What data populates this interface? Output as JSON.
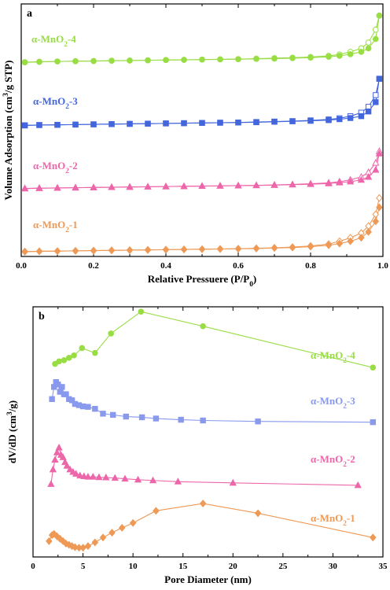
{
  "chart_data": [
    {
      "type": "line",
      "panel": "a",
      "xlabel": "Relative Pressuere (P/P0)",
      "ylabel": "Volume Adsorption (cm3/g STP)",
      "xlim": [
        0.0,
        1.0
      ],
      "xticks": [
        "0.0",
        "0.2",
        "0.4",
        "0.6",
        "0.8",
        "1.0"
      ],
      "y_tick_labels": false,
      "series": [
        {
          "name": "α-MnO2-4",
          "color": "#99dd44",
          "marker": "circle",
          "offset": 0.81,
          "x": [
            0.01,
            0.05,
            0.1,
            0.15,
            0.2,
            0.25,
            0.3,
            0.35,
            0.4,
            0.45,
            0.5,
            0.55,
            0.6,
            0.65,
            0.7,
            0.75,
            0.8,
            0.85,
            0.88,
            0.91,
            0.94,
            0.96,
            0.98,
            0.99
          ],
          "ads": [
            0,
            0.002,
            0.004,
            0.005,
            0.006,
            0.007,
            0.008,
            0.009,
            0.01,
            0.011,
            0.012,
            0.013,
            0.014,
            0.015,
            0.016,
            0.018,
            0.02,
            0.024,
            0.028,
            0.035,
            0.045,
            0.06,
            0.1,
            0.2
          ],
          "des": [
            0.001,
            0.003,
            0.004,
            0.005,
            0.006,
            0.007,
            0.008,
            0.009,
            0.01,
            0.011,
            0.012,
            0.013,
            0.014,
            0.016,
            0.018,
            0.02,
            0.023,
            0.028,
            0.034,
            0.045,
            0.06,
            0.085,
            0.14,
            0.2
          ]
        },
        {
          "name": "α-MnO2-3",
          "color": "#4466dd",
          "marker": "square",
          "offset": 0.54,
          "x": [
            0.01,
            0.05,
            0.1,
            0.15,
            0.2,
            0.25,
            0.3,
            0.35,
            0.4,
            0.45,
            0.5,
            0.55,
            0.6,
            0.65,
            0.7,
            0.75,
            0.8,
            0.85,
            0.88,
            0.91,
            0.94,
            0.96,
            0.98,
            0.99
          ],
          "ads": [
            0,
            0.002,
            0.003,
            0.004,
            0.005,
            0.006,
            0.007,
            0.008,
            0.009,
            0.01,
            0.011,
            0.012,
            0.013,
            0.014,
            0.016,
            0.018,
            0.02,
            0.023,
            0.027,
            0.032,
            0.04,
            0.06,
            0.1,
            0.2
          ],
          "des": [
            0.001,
            0.002,
            0.003,
            0.004,
            0.005,
            0.006,
            0.007,
            0.008,
            0.009,
            0.01,
            0.011,
            0.012,
            0.013,
            0.015,
            0.017,
            0.019,
            0.022,
            0.026,
            0.031,
            0.04,
            0.055,
            0.08,
            0.13,
            0.2
          ]
        },
        {
          "name": "α-MnO2-2",
          "color": "#ee66aa",
          "marker": "triangle",
          "offset": 0.27,
          "x": [
            0.01,
            0.05,
            0.1,
            0.15,
            0.2,
            0.25,
            0.3,
            0.35,
            0.4,
            0.45,
            0.5,
            0.55,
            0.6,
            0.65,
            0.7,
            0.75,
            0.8,
            0.85,
            0.88,
            0.91,
            0.94,
            0.96,
            0.98,
            0.99
          ],
          "ads": [
            0,
            0.002,
            0.003,
            0.004,
            0.005,
            0.006,
            0.007,
            0.008,
            0.009,
            0.01,
            0.011,
            0.012,
            0.013,
            0.014,
            0.015,
            0.017,
            0.019,
            0.022,
            0.026,
            0.03,
            0.037,
            0.05,
            0.08,
            0.15
          ],
          "des": [
            0.001,
            0.002,
            0.003,
            0.004,
            0.005,
            0.006,
            0.007,
            0.008,
            0.009,
            0.01,
            0.011,
            0.012,
            0.013,
            0.014,
            0.016,
            0.018,
            0.021,
            0.025,
            0.03,
            0.038,
            0.05,
            0.07,
            0.11,
            0.16
          ]
        },
        {
          "name": "α-MnO2-1",
          "color": "#ee9955",
          "marker": "diamond",
          "offset": 0.0,
          "x": [
            0.01,
            0.05,
            0.1,
            0.15,
            0.2,
            0.25,
            0.3,
            0.35,
            0.4,
            0.45,
            0.5,
            0.55,
            0.6,
            0.65,
            0.7,
            0.75,
            0.8,
            0.85,
            0.88,
            0.91,
            0.94,
            0.96,
            0.98,
            0.99
          ],
          "ads": [
            0,
            0.002,
            0.003,
            0.004,
            0.005,
            0.006,
            0.007,
            0.008,
            0.009,
            0.01,
            0.011,
            0.012,
            0.013,
            0.014,
            0.016,
            0.018,
            0.022,
            0.028,
            0.035,
            0.045,
            0.06,
            0.085,
            0.13,
            0.19
          ],
          "des": [
            0.001,
            0.002,
            0.003,
            0.004,
            0.005,
            0.006,
            0.007,
            0.008,
            0.009,
            0.01,
            0.011,
            0.012,
            0.013,
            0.015,
            0.017,
            0.02,
            0.025,
            0.033,
            0.045,
            0.06,
            0.08,
            0.11,
            0.16,
            0.23
          ]
        }
      ]
    },
    {
      "type": "line",
      "panel": "b",
      "xlabel": "Pore Diameter (nm)",
      "ylabel": "dV/dD (cm3/g)",
      "xlim": [
        0,
        35
      ],
      "xticks": [
        "0",
        "5",
        "10",
        "15",
        "20",
        "25",
        "30",
        "35"
      ],
      "y_tick_labels": false,
      "series": [
        {
          "name": "α-MnO2-4",
          "color": "#99dd44",
          "marker": "circle",
          "offset": 0.75,
          "x": [
            2.2,
            2.6,
            3.1,
            3.6,
            4.1,
            4.9,
            6.2,
            7.8,
            10.8,
            17.0,
            34.0
          ],
          "y": [
            0.015,
            0.025,
            0.03,
            0.04,
            0.05,
            0.08,
            0.06,
            0.14,
            0.23,
            0.17,
            0.0
          ]
        },
        {
          "name": "α-MnO2-3",
          "color": "#8899ee",
          "marker": "square",
          "offset": 0.52,
          "x": [
            1.9,
            2.1,
            2.3,
            2.5,
            2.7,
            2.9,
            3.1,
            3.3,
            3.6,
            3.9,
            4.2,
            4.6,
            5.0,
            5.5,
            6.2,
            7.0,
            8.0,
            9.3,
            10.9,
            12.3,
            14.8,
            17.0,
            22.5,
            34.0
          ],
          "y": [
            0.1,
            0.15,
            0.17,
            0.16,
            0.13,
            0.15,
            0.12,
            0.12,
            0.1,
            0.095,
            0.08,
            0.075,
            0.07,
            0.068,
            0.06,
            0.04,
            0.035,
            0.028,
            0.025,
            0.02,
            0.015,
            0.012,
            0.008,
            0.005
          ]
        },
        {
          "name": "α-MnO2-2",
          "color": "#ee66aa",
          "marker": "triangle",
          "offset": 0.27,
          "x": [
            1.8,
            2.0,
            2.2,
            2.4,
            2.6,
            2.8,
            3.0,
            3.2,
            3.4,
            3.7,
            4.0,
            4.3,
            4.7,
            5.1,
            5.5,
            6.0,
            6.6,
            7.3,
            8.2,
            9.2,
            10.5,
            12.0,
            14.5,
            20.0,
            32.5
          ],
          "y": [
            0.0,
            0.06,
            0.1,
            0.13,
            0.15,
            0.12,
            0.11,
            0.09,
            0.075,
            0.06,
            0.05,
            0.042,
            0.035,
            0.032,
            0.03,
            0.03,
            0.028,
            0.027,
            0.025,
            0.022,
            0.018,
            0.015,
            0.01,
            0.005,
            -0.005
          ]
        },
        {
          "name": "α-MnO2-1",
          "color": "#ee9955",
          "marker": "diamond",
          "offset": 0.0,
          "x": [
            1.6,
            1.9,
            2.1,
            2.4,
            2.7,
            3.0,
            3.3,
            3.6,
            3.9,
            4.2,
            4.6,
            5.0,
            5.5,
            6.2,
            7.0,
            7.9,
            8.9,
            10.0,
            12.3,
            17.0,
            22.5,
            34.0
          ],
          "y": [
            0.035,
            0.06,
            0.065,
            0.055,
            0.045,
            0.035,
            0.025,
            0.02,
            0.015,
            0.01,
            0.008,
            0.008,
            0.015,
            0.03,
            0.05,
            0.07,
            0.09,
            0.11,
            0.16,
            0.19,
            0.15,
            0.05
          ]
        }
      ]
    }
  ]
}
